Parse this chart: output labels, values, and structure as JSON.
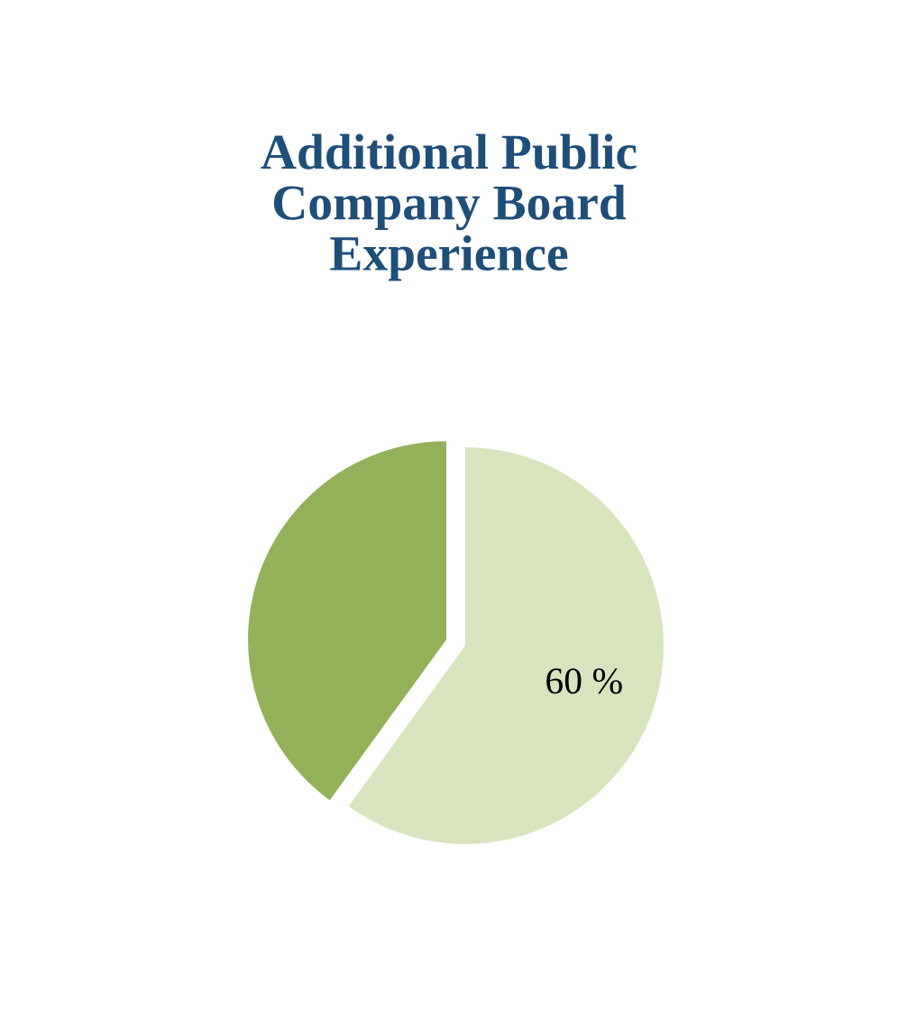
{
  "chart_data": {
    "type": "pie",
    "title": "Additional Public\nCompany Board\nExperience",
    "categories": [
      null,
      null
    ],
    "values": [
      60,
      40
    ],
    "colors": [
      "#d7e4bd",
      "#93b159"
    ],
    "value_labels": [
      "60 %",
      null
    ]
  }
}
